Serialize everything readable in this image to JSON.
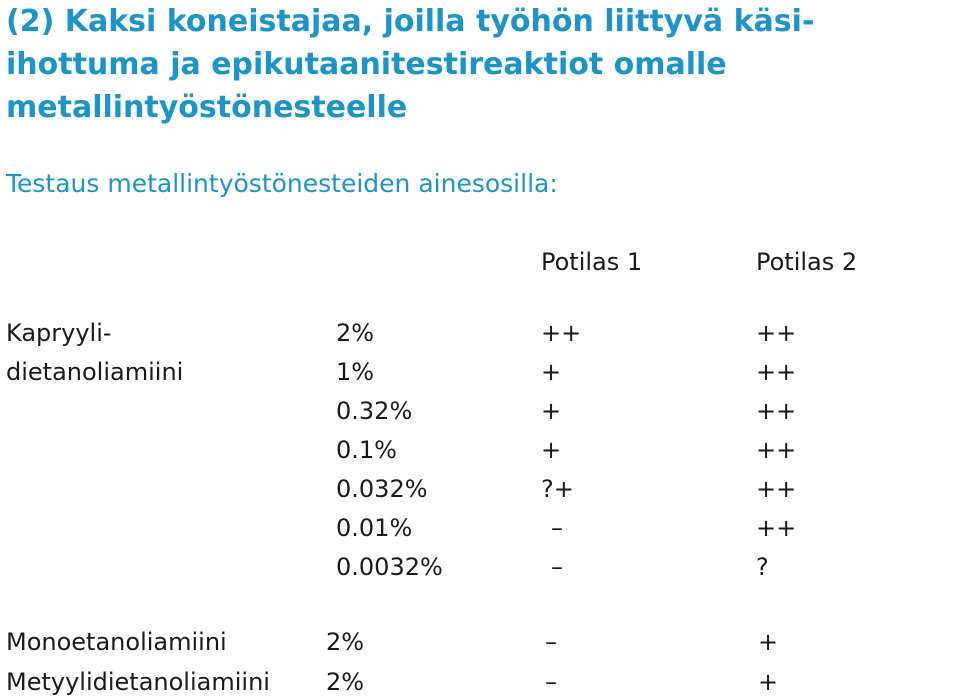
{
  "title": "(2) Kaksi koneistajaa, joilla työhön liittyvä käsi-ihottuma ja epikutaanitestireaktiot omalle metallintyöstönesteelle",
  "subtitle": "Testaus metallintyöstönesteiden ainesosilla:",
  "table": {
    "headers": {
      "patient1": "Potilas 1",
      "patient2": "Potilas 2"
    },
    "group1": {
      "name_line1": "Kapryyli-",
      "name_line2": "dietanoliamiini",
      "rows": [
        {
          "concentration": "2%",
          "patient1": "++",
          "patient2": "++"
        },
        {
          "concentration": "1%",
          "patient1": "+",
          "patient2": "++"
        },
        {
          "concentration": "0.32%",
          "patient1": "+",
          "patient2": "++"
        },
        {
          "concentration": "0.1%",
          "patient1": "+",
          "patient2": "++"
        },
        {
          "concentration": "0.032%",
          "patient1": "?+",
          "patient2": "++"
        },
        {
          "concentration": "0.01%",
          "patient1": "–",
          "patient2": "++"
        },
        {
          "concentration": "0.0032%",
          "patient1": "–",
          "patient2": "?"
        }
      ]
    },
    "group2": {
      "name": "Monoetanoliamiini",
      "concentration": "2%",
      "patient1": "–",
      "patient2": "+"
    },
    "group3": {
      "name": "Metyylidietanoliamiini",
      "concentration": "2%",
      "patient1": "–",
      "patient2": "+"
    }
  }
}
